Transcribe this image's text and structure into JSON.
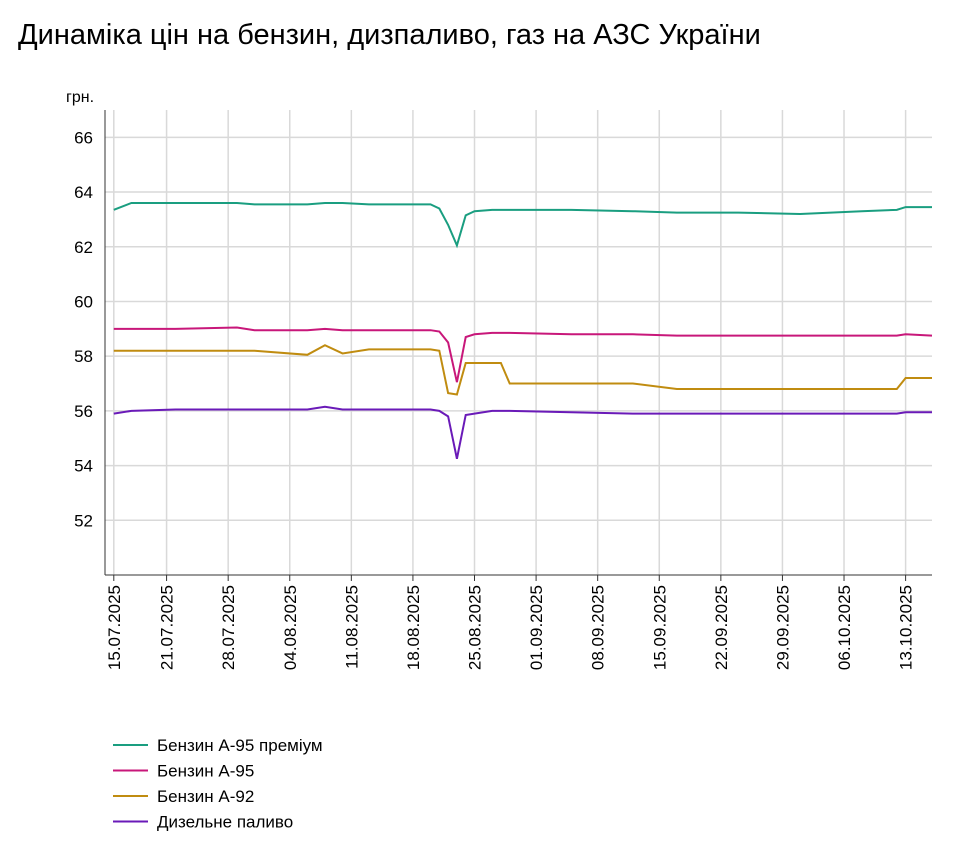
{
  "chart_data": {
    "type": "line",
    "title": "Динаміка цін на бензин, дизпаливо, газ на АЗС України",
    "y_label": "грн.",
    "x": [
      "15.07.2025",
      "17.07.2025",
      "22.07.2025",
      "29.07.2025",
      "31.07.2025",
      "06.08.2025",
      "08.08.2025",
      "10.08.2025",
      "13.08.2025",
      "18.08.2025",
      "20.08.2025",
      "21.08.2025",
      "22.08.2025",
      "23.08.2025",
      "24.08.2025",
      "25.08.2025",
      "27.08.2025",
      "28.08.2025",
      "29.08.2025",
      "05.09.2025",
      "12.09.2025",
      "17.09.2025",
      "24.09.2025",
      "01.10.2025",
      "08.10.2025",
      "12.10.2025",
      "13.10.2025",
      "16.10.2025"
    ],
    "series": [
      {
        "name": "Бензин А-95 преміум",
        "color": "#1a9e80",
        "values": [
          63.35,
          63.6,
          63.6,
          63.6,
          63.55,
          63.55,
          63.6,
          63.6,
          63.55,
          63.55,
          63.55,
          63.4,
          62.8,
          62.05,
          63.15,
          63.3,
          63.35,
          63.35,
          63.35,
          63.35,
          63.3,
          63.25,
          63.25,
          63.2,
          63.3,
          63.35,
          63.45,
          63.45
        ]
      },
      {
        "name": "Бензин А-95",
        "color": "#c8177a",
        "values": [
          59.0,
          59.0,
          59.0,
          59.05,
          58.95,
          58.95,
          59.0,
          58.95,
          58.95,
          58.95,
          58.95,
          58.9,
          58.5,
          57.05,
          58.7,
          58.8,
          58.85,
          58.85,
          58.85,
          58.8,
          58.8,
          58.75,
          58.75,
          58.75,
          58.75,
          58.75,
          58.8,
          58.75
        ]
      },
      {
        "name": "Бензин А-92",
        "color": "#c08c10",
        "values": [
          58.2,
          58.2,
          58.2,
          58.2,
          58.2,
          58.05,
          58.4,
          58.1,
          58.25,
          58.25,
          58.25,
          58.2,
          56.65,
          56.6,
          57.75,
          57.75,
          57.75,
          57.75,
          57.0,
          57.0,
          57.0,
          56.8,
          56.8,
          56.8,
          56.8,
          56.8,
          57.2,
          57.2
        ]
      },
      {
        "name": "Дизельне паливо",
        "color": "#6a1ab8",
        "values": [
          55.9,
          56.0,
          56.05,
          56.05,
          56.05,
          56.05,
          56.15,
          56.05,
          56.05,
          56.05,
          56.05,
          56.0,
          55.8,
          54.25,
          55.85,
          55.9,
          56.0,
          56.0,
          56.0,
          55.95,
          55.9,
          55.9,
          55.9,
          55.9,
          55.9,
          55.9,
          55.95,
          55.95
        ]
      }
    ],
    "xlim": [
      "14.07.2025",
      "16.10.2025"
    ],
    "xticks": [
      "15.07.2025",
      "21.07.2025",
      "28.07.2025",
      "04.08.2025",
      "11.08.2025",
      "18.08.2025",
      "25.08.2025",
      "01.09.2025",
      "08.09.2025",
      "15.09.2025",
      "22.09.2025",
      "29.09.2025",
      "06.10.2025",
      "13.10.2025"
    ],
    "ylim": [
      50,
      67
    ],
    "yticks": [
      52,
      54,
      56,
      58,
      60,
      62,
      64,
      66
    ],
    "grid": true,
    "legend": "bottom-left"
  }
}
